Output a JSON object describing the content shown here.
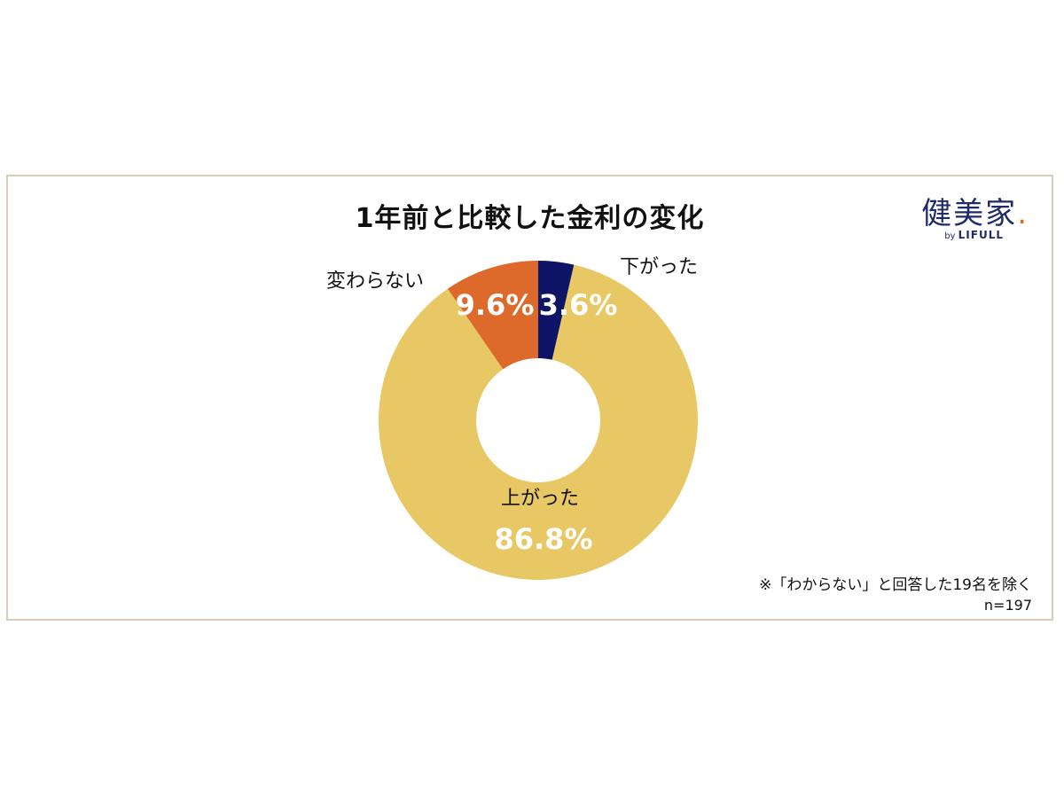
{
  "chart_data": {
    "type": "pie",
    "title": "1年前と比較した金利の変化",
    "categories": [
      "下がった",
      "上がった",
      "変わらない"
    ],
    "values": [
      3.6,
      86.8,
      9.6
    ],
    "value_labels": [
      "3.6%",
      "86.8%",
      "9.6%"
    ],
    "colors": [
      "#0e1466",
      "#e8c865",
      "#dd6a2a"
    ],
    "donut": true
  },
  "brand": {
    "name": "健美家",
    "dot": ".",
    "by": "by",
    "sub": "LIFULL"
  },
  "footnote": "※「わからない」と回答した19名を除く",
  "sample_size": "n=197"
}
